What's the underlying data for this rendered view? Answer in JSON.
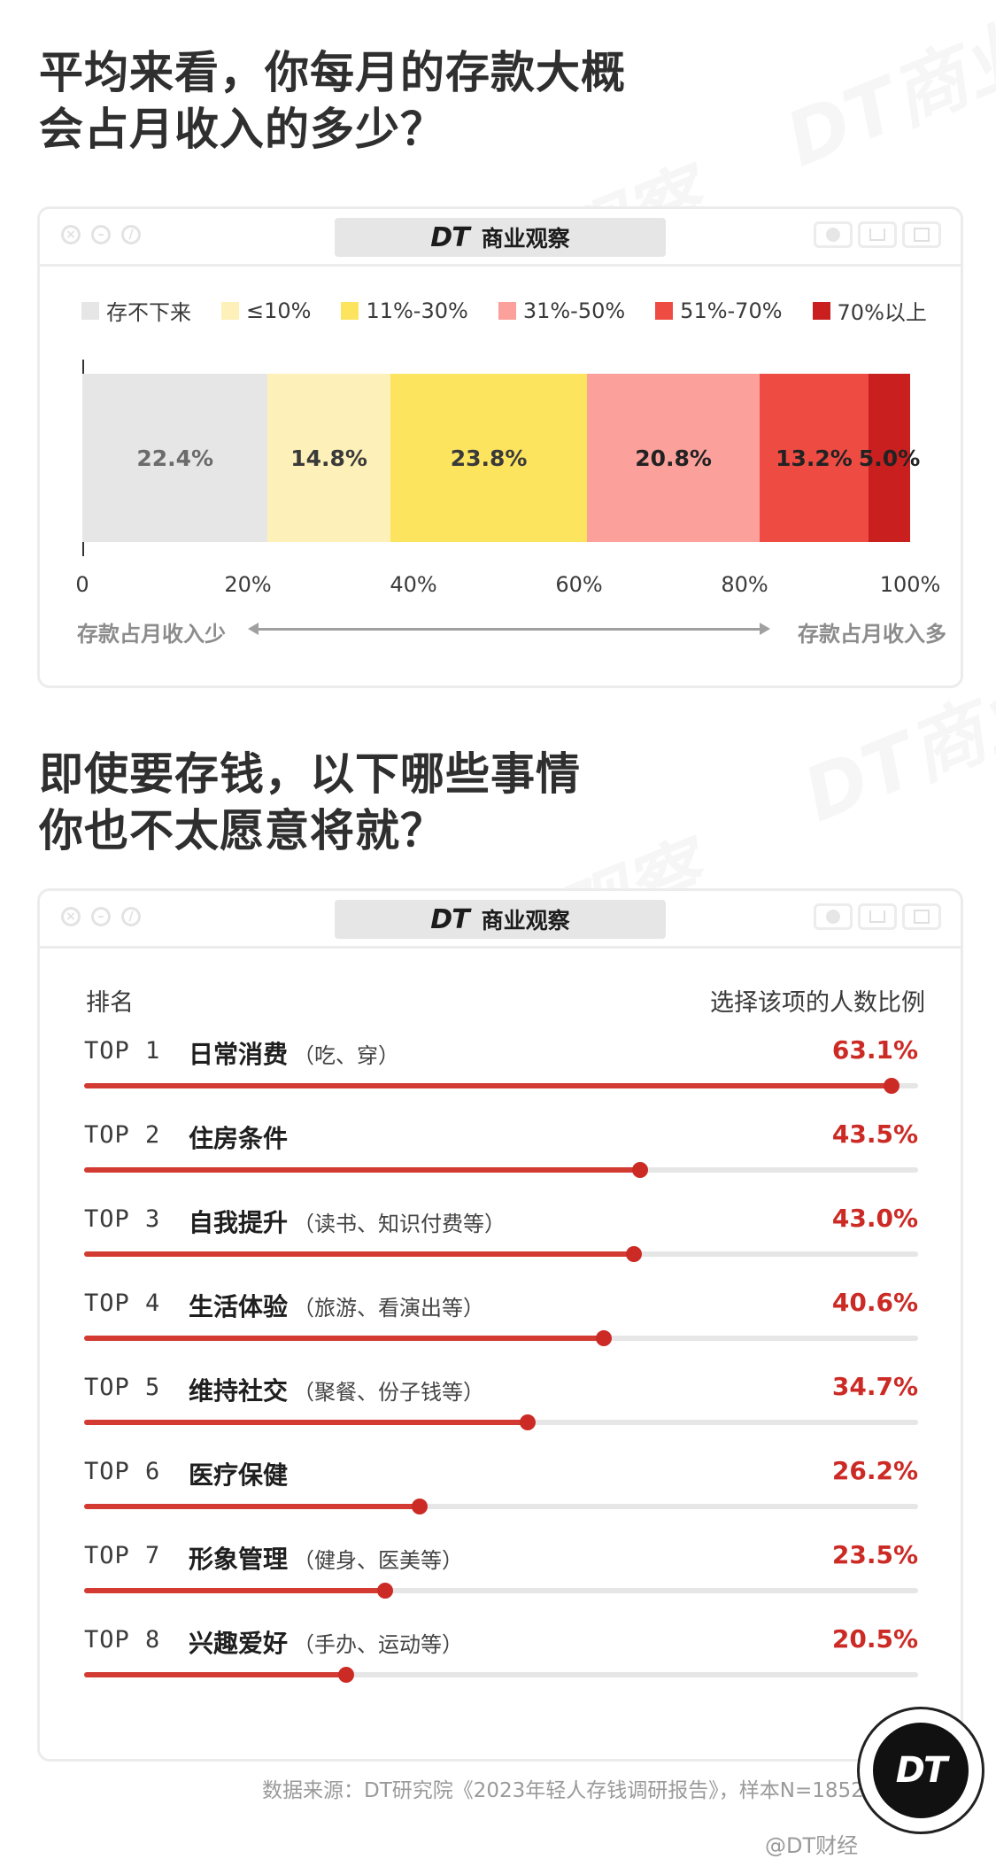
{
  "headline1": [
    "平均来看，你每月的存款大概",
    "会占月收入的多少？"
  ],
  "headline2": [
    "即使要存钱，以下哪些事情",
    "你也不太愿意将就？"
  ],
  "brand": {
    "mark": "DT",
    "name": "商业观察"
  },
  "colors": {
    "accent": "#cc2a25",
    "bar_track": "#e6e6e6"
  },
  "chart_data": [
    {
      "type": "bar",
      "orientation": "horizontal-stacked-100",
      "series": [
        {
          "name": "存不下来",
          "value": 22.4,
          "label": "22.4%",
          "color": "#e6e6e6",
          "text_color": "#6b6b6b"
        },
        {
          "name": "≤10%",
          "value": 14.8,
          "label": "14.8%",
          "color": "#fdf0b8",
          "text_color": "#3a3a3a"
        },
        {
          "name": "11%-30%",
          "value": 23.8,
          "label": "23.8%",
          "color": "#fde45f",
          "text_color": "#3a3a3a"
        },
        {
          "name": "31%-50%",
          "value": 20.8,
          "label": "20.8%",
          "color": "#fca09b",
          "text_color": "#222222"
        },
        {
          "name": "51%-70%",
          "value": 13.2,
          "label": "13.2%",
          "color": "#ee4c43",
          "text_color": "#222222"
        },
        {
          "name": "70%以上",
          "value": 5.0,
          "label": "5.0%",
          "color": "#c91f1f",
          "text_color": "#222222"
        }
      ],
      "xlim": [
        0,
        100
      ],
      "x_ticks": [
        "0",
        "20%",
        "40%",
        "60%",
        "80%",
        "100%"
      ],
      "x_tick_values": [
        0,
        20,
        40,
        60,
        80,
        100
      ],
      "direction_left": "存款占月收入少",
      "direction_right": "存款占月收入多",
      "legend": "top"
    },
    {
      "type": "bar",
      "orientation": "horizontal-ranked",
      "header_left": "排名",
      "header_right": "选择该项的人数比例",
      "xlim": [
        0,
        65.2
      ],
      "items": [
        {
          "rank": "TOP 1",
          "title": "日常消费",
          "note": "（吃、穿）",
          "value": 63.1,
          "label": "63.1%"
        },
        {
          "rank": "TOP 2",
          "title": "住房条件",
          "note": "",
          "value": 43.5,
          "label": "43.5%"
        },
        {
          "rank": "TOP 3",
          "title": "自我提升",
          "note": "（读书、知识付费等）",
          "value": 43.0,
          "label": "43.0%"
        },
        {
          "rank": "TOP 4",
          "title": "生活体验",
          "note": "（旅游、看演出等）",
          "value": 40.6,
          "label": "40.6%"
        },
        {
          "rank": "TOP 5",
          "title": "维持社交",
          "note": "（聚餐、份子钱等）",
          "value": 34.7,
          "label": "34.7%"
        },
        {
          "rank": "TOP 6",
          "title": "医疗保健",
          "note": "",
          "value": 26.2,
          "label": "26.2%"
        },
        {
          "rank": "TOP 7",
          "title": "形象管理",
          "note": "（健身、医美等）",
          "value": 23.5,
          "label": "23.5%"
        },
        {
          "rank": "TOP 8",
          "title": "兴趣爱好",
          "note": "（手办、运动等）",
          "value": 20.5,
          "label": "20.5%"
        }
      ]
    }
  ],
  "source": "数据来源：DT研究院《2023年轻人存钱调研报告》，样本N=1852",
  "logo_text": "DT",
  "footer_tag": "@DT财经"
}
